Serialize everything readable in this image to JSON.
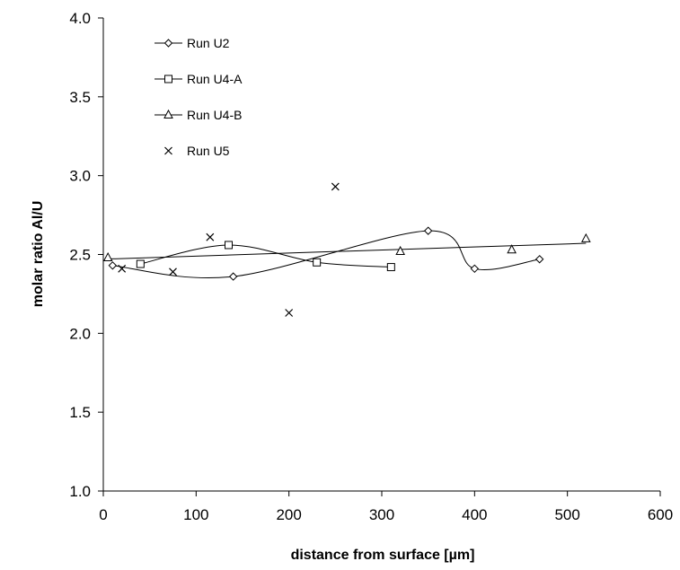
{
  "chart_data": {
    "type": "scatter",
    "title": "",
    "xlabel": "distance from surface [µm]",
    "ylabel": "molar ratio Al/U",
    "xlim": [
      0,
      600
    ],
    "ylim": [
      1.0,
      4.0
    ],
    "x_ticks": [
      "0",
      "100",
      "200",
      "300",
      "400",
      "500",
      "600"
    ],
    "y_ticks": [
      "1.0",
      "1.5",
      "2.0",
      "2.5",
      "3.0",
      "3.5",
      "4.0"
    ],
    "grid": false,
    "legend_position": "top-left",
    "series": [
      {
        "name": "Run U2",
        "marker": "diamond",
        "line": "smooth",
        "x": [
          10,
          140,
          350,
          400,
          470
        ],
        "y": [
          2.43,
          2.36,
          2.65,
          2.41,
          2.47
        ]
      },
      {
        "name": "Run U4-A",
        "marker": "square",
        "line": "smooth",
        "x": [
          40,
          135,
          230,
          310
        ],
        "y": [
          2.44,
          2.56,
          2.45,
          2.42
        ]
      },
      {
        "name": "Run U4-B",
        "marker": "triangle",
        "line": "trend",
        "x": [
          5,
          320,
          440,
          520
        ],
        "y": [
          2.48,
          2.52,
          2.53,
          2.6
        ]
      },
      {
        "name": "Run U5",
        "marker": "cross",
        "line": "none",
        "x": [
          20,
          75,
          115,
          200,
          250
        ],
        "y": [
          2.41,
          2.39,
          2.61,
          2.13,
          2.93
        ]
      }
    ]
  }
}
